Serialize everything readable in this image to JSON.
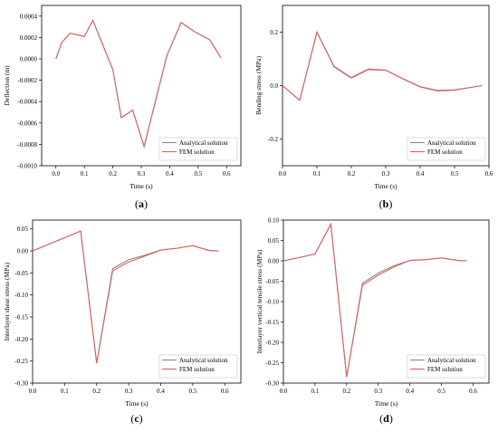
{
  "chart_data": [
    {
      "type": "line",
      "panel_label": "a",
      "xlabel": "Time (s)",
      "ylabel": "Deflection (m)",
      "xlim": [
        -0.05,
        0.65
      ],
      "ylim": [
        -0.001,
        0.0005
      ],
      "xticks": [
        0.0,
        0.1,
        0.2,
        0.3,
        0.4,
        0.5,
        0.6
      ],
      "xtick_labels": [
        "0.0",
        "0.1",
        "0.2",
        "0.3",
        "0.4",
        "0.5",
        "0.6"
      ],
      "yticks": [
        -0.001,
        -0.0008,
        -0.0006,
        -0.0004,
        -0.0002,
        0.0,
        0.0002,
        0.0004
      ],
      "ytick_labels": [
        "-0.0010",
        "-0.0008",
        "-0.0006",
        "-0.0004",
        "-0.0002",
        "0.0000",
        "0.0002",
        "0.0004"
      ],
      "legend_position": "bottom-right",
      "series": [
        {
          "name": "Analytical solution",
          "color": "#888888",
          "x": [
            0.0,
            0.02,
            0.05,
            0.1,
            0.13,
            0.2,
            0.23,
            0.27,
            0.31,
            0.39,
            0.44,
            0.49,
            0.54,
            0.58
          ],
          "y": [
            0.0,
            0.00015,
            0.00024,
            0.00021,
            0.00036,
            -0.0001,
            -0.00055,
            -0.00048,
            -0.00082,
            3e-05,
            0.00034,
            0.00025,
            0.00018,
            1e-05
          ]
        },
        {
          "name": "FEM solution",
          "color": "#e06060",
          "x": [
            0.0,
            0.02,
            0.05,
            0.1,
            0.13,
            0.2,
            0.23,
            0.27,
            0.31,
            0.39,
            0.44,
            0.49,
            0.54,
            0.58
          ],
          "y": [
            0.0,
            0.00015,
            0.00024,
            0.00021,
            0.00036,
            -0.0001,
            -0.00055,
            -0.00048,
            -0.00082,
            3e-05,
            0.00034,
            0.00025,
            0.00018,
            1e-05
          ]
        }
      ]
    },
    {
      "type": "line",
      "panel_label": "b",
      "xlabel": "Time (s)",
      "ylabel": "Bending stress (MPa)",
      "xlim": [
        0.0,
        0.6
      ],
      "ylim": [
        -0.3,
        0.3
      ],
      "xticks": [
        0.0,
        0.1,
        0.2,
        0.3,
        0.4,
        0.5,
        0.6
      ],
      "xtick_labels": [
        "0.0",
        "0.1",
        "0.2",
        "0.3",
        "0.4",
        "0.5",
        "0.6"
      ],
      "yticks": [
        -0.2,
        0.0,
        0.2
      ],
      "ytick_labels": [
        "-0.2",
        "0.0",
        "0.2"
      ],
      "legend_position": "bottom-right",
      "series": [
        {
          "name": "Analytical solution",
          "color": "#888888",
          "x": [
            0.0,
            0.05,
            0.1,
            0.15,
            0.2,
            0.25,
            0.3,
            0.35,
            0.4,
            0.45,
            0.5,
            0.58
          ],
          "y": [
            0.0,
            -0.055,
            0.2,
            0.07,
            0.028,
            0.06,
            0.057,
            0.025,
            -0.005,
            -0.02,
            -0.017,
            0.0
          ]
        },
        {
          "name": "FEM solution",
          "color": "#e06060",
          "x": [
            0.0,
            0.05,
            0.1,
            0.15,
            0.2,
            0.25,
            0.3,
            0.35,
            0.4,
            0.45,
            0.5,
            0.58
          ],
          "y": [
            0.0,
            -0.055,
            0.2,
            0.072,
            0.03,
            0.062,
            0.058,
            0.026,
            -0.004,
            -0.018,
            -0.016,
            0.0
          ]
        }
      ]
    },
    {
      "type": "line",
      "panel_label": "c",
      "xlabel": "Time (s)",
      "ylabel": "Interlayer shear stress (MPa)",
      "xlim": [
        0.0,
        0.65
      ],
      "ylim": [
        -0.3,
        0.07
      ],
      "xticks": [
        0.0,
        0.1,
        0.2,
        0.3,
        0.4,
        0.5,
        0.6
      ],
      "xtick_labels": [
        "0.0",
        "0.1",
        "0.2",
        "0.3",
        "0.4",
        "0.5",
        "0.6"
      ],
      "yticks": [
        -0.3,
        -0.25,
        -0.2,
        -0.15,
        -0.1,
        -0.05,
        0.0,
        0.05
      ],
      "ytick_labels": [
        "-0.30",
        "-0.25",
        "-0.20",
        "-0.15",
        "-0.10",
        "-0.05",
        "0.00",
        "0.05"
      ],
      "legend_position": "bottom-right",
      "series": [
        {
          "name": "Analytical solution",
          "color": "#888888",
          "x": [
            0.0,
            0.05,
            0.1,
            0.15,
            0.2,
            0.25,
            0.3,
            0.35,
            0.4,
            0.45,
            0.5,
            0.55,
            0.58
          ],
          "y": [
            0.0,
            0.015,
            0.03,
            0.045,
            -0.255,
            -0.04,
            -0.02,
            -0.01,
            0.002,
            0.006,
            0.012,
            0.001,
            0.0
          ]
        },
        {
          "name": "FEM solution",
          "color": "#e06060",
          "x": [
            0.0,
            0.05,
            0.1,
            0.15,
            0.2,
            0.25,
            0.3,
            0.35,
            0.4,
            0.45,
            0.5,
            0.55,
            0.58
          ],
          "y": [
            0.0,
            0.015,
            0.03,
            0.045,
            -0.255,
            -0.045,
            -0.025,
            -0.012,
            0.002,
            0.006,
            0.012,
            0.001,
            0.0
          ]
        }
      ]
    },
    {
      "type": "line",
      "panel_label": "d",
      "xlabel": "Time (s)",
      "ylabel": "Interlayer vertical tensile stress (MPa)",
      "xlim": [
        0.0,
        0.65
      ],
      "ylim": [
        -0.3,
        0.1
      ],
      "xticks": [
        0.0,
        0.1,
        0.2,
        0.3,
        0.4,
        0.5,
        0.6
      ],
      "xtick_labels": [
        "0.0",
        "0.1",
        "0.2",
        "0.3",
        "0.4",
        "0.5",
        "0.6"
      ],
      "yticks": [
        -0.3,
        -0.25,
        -0.2,
        -0.15,
        -0.1,
        -0.05,
        0.0,
        0.05,
        0.1
      ],
      "ytick_labels": [
        "-0.30",
        "-0.25",
        "-0.20",
        "-0.15",
        "-0.10",
        "-0.05",
        "0.00",
        "0.05",
        "0.10"
      ],
      "legend_position": "bottom-right",
      "series": [
        {
          "name": "Analytical solution",
          "color": "#888888",
          "x": [
            0.0,
            0.05,
            0.1,
            0.15,
            0.2,
            0.25,
            0.3,
            0.35,
            0.4,
            0.45,
            0.5,
            0.55,
            0.58
          ],
          "y": [
            0.0,
            0.008,
            0.017,
            0.09,
            -0.285,
            -0.055,
            -0.03,
            -0.012,
            0.001,
            0.003,
            0.007,
            0.001,
            0.0
          ]
        },
        {
          "name": "FEM solution",
          "color": "#e06060",
          "x": [
            0.0,
            0.05,
            0.1,
            0.15,
            0.2,
            0.25,
            0.3,
            0.35,
            0.4,
            0.45,
            0.5,
            0.55,
            0.58
          ],
          "y": [
            0.0,
            0.008,
            0.017,
            0.09,
            -0.285,
            -0.06,
            -0.035,
            -0.015,
            0.001,
            0.003,
            0.007,
            0.001,
            0.0
          ]
        }
      ]
    }
  ]
}
